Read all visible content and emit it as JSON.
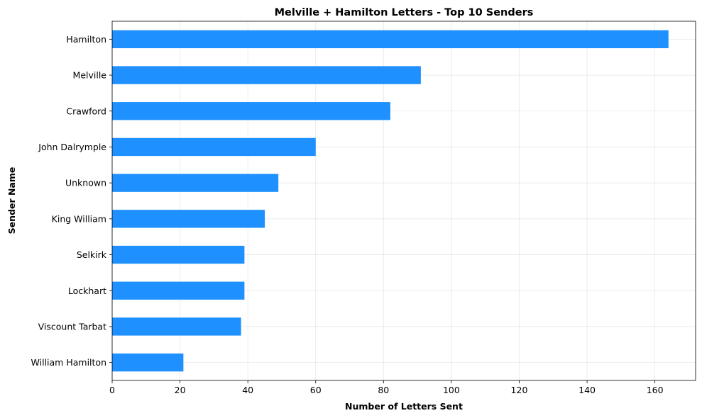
{
  "chart_data": {
    "type": "bar",
    "orientation": "horizontal",
    "title": "Melville + Hamilton Letters - Top 10 Senders",
    "xlabel": "Number of Letters Sent",
    "ylabel": "Sender Name",
    "categories": [
      "Hamilton",
      "Melville",
      "Crawford",
      "John Dalrymple",
      "Unknown",
      "King William",
      "Selkirk",
      "Lockhart",
      "Viscount Tarbat",
      "William Hamilton"
    ],
    "values": [
      164,
      91,
      82,
      60,
      49,
      45,
      39,
      39,
      38,
      21
    ],
    "xlim": [
      0,
      172
    ],
    "xticks": [
      0,
      20,
      40,
      60,
      80,
      100,
      120,
      140,
      160
    ],
    "grid": true,
    "bar_color": "#1e90ff"
  }
}
